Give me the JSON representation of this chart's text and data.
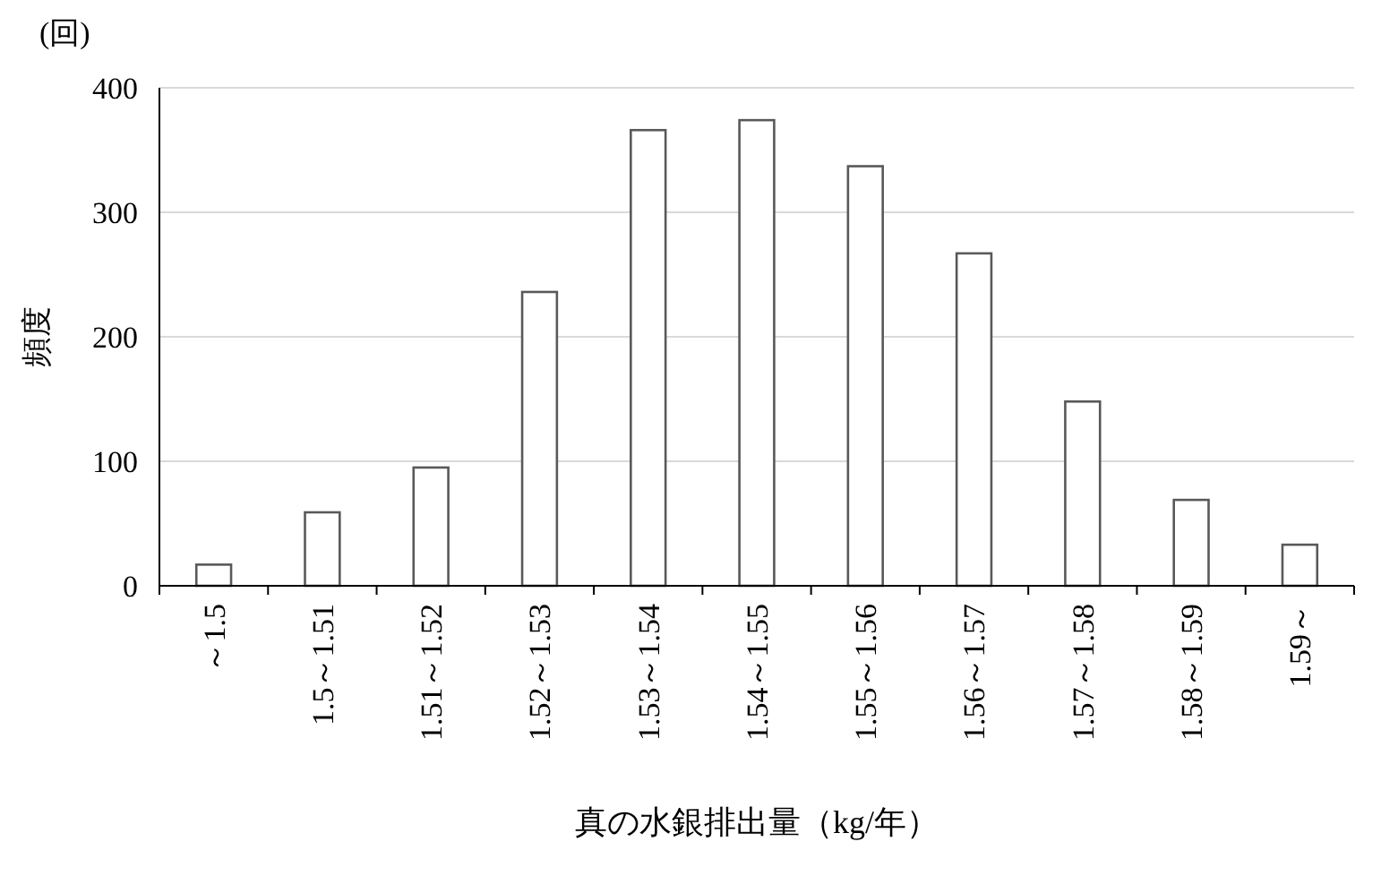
{
  "chart_data": {
    "type": "bar",
    "ylabel": "頻度",
    "xlabel": "真の水銀排出量（kg/年）",
    "annotations": [
      "(回)"
    ],
    "categories": [
      "～1.5",
      "1.5～1.51",
      "1.51～1.52",
      "1.52～1.53",
      "1.53～1.54",
      "1.54～1.55",
      "1.55～1.56",
      "1.56～1.57",
      "1.57～1.58",
      "1.58～1.59",
      "1.59～"
    ],
    "values": [
      17,
      59,
      95,
      236,
      366,
      374,
      337,
      267,
      148,
      69,
      33
    ],
    "color": "#ffffff",
    "ylim": [
      0,
      400
    ],
    "yticks": [
      0,
      100,
      200,
      300,
      400
    ],
    "grid": "y"
  }
}
